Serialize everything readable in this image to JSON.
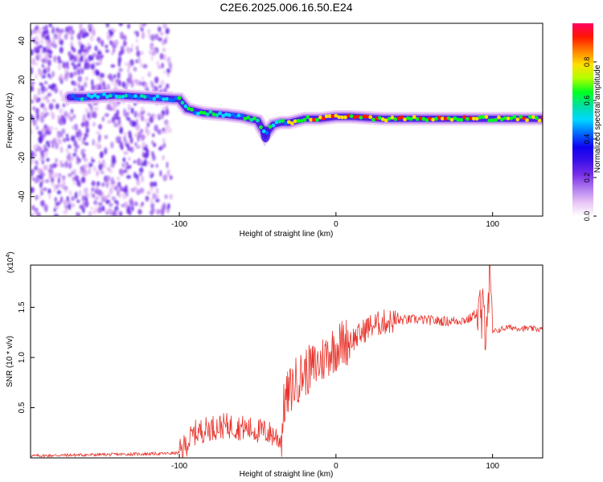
{
  "figure": {
    "title": "C2E6.2025.006.16.50.E24"
  },
  "colorbar": {
    "label": "Normalized spectral amplitude",
    "ticks": [
      "0.0",
      "0.2",
      "0.4",
      "0.6",
      "0.8"
    ],
    "colormap": [
      "#ffffff",
      "#e8c4f5",
      "#b07cf0",
      "#7a2fe8",
      "#3b10e8",
      "#1000f0",
      "#0068ff",
      "#00d8ff",
      "#00e0a0",
      "#00ff20",
      "#b0ff00",
      "#ffe000",
      "#ff8000",
      "#ff1800",
      "#ff0060"
    ]
  },
  "chart_data": [
    {
      "type": "heatmap",
      "xlabel": "Height of straight line (km)",
      "ylabel": "Frequency (Hz)",
      "xlim": [
        -195,
        132
      ],
      "ylim": [
        -50,
        49
      ],
      "xticks": [
        -100,
        0,
        100
      ],
      "yticks": [
        40,
        20,
        0,
        -20,
        -40
      ],
      "ridge": {
        "x": [
          -160,
          -140,
          -120,
          -100,
          -95,
          -85,
          -70,
          -60,
          -50,
          -45,
          -40,
          -35,
          -30,
          -20,
          -10,
          0,
          10,
          30,
          60,
          90,
          100,
          130
        ],
        "frequency": [
          11,
          12,
          11,
          10,
          5,
          3,
          2,
          1,
          -1,
          -8,
          -3,
          -2,
          -2,
          0,
          0,
          1,
          1,
          0,
          0,
          0,
          0,
          0
        ]
      }
    },
    {
      "type": "line",
      "xlabel": "Height of straight line (km)",
      "ylabel": "SNR (10 * v/v)",
      "y_multiplier_label": "(x10",
      "y_multiplier_exponent": "4",
      "y_multiplier_close": ")",
      "xlim": [
        -195,
        132
      ],
      "ylim": [
        0,
        19200
      ],
      "xticks": [
        -100,
        0,
        100
      ],
      "yticks": [
        5000,
        10000,
        15000
      ],
      "ytick_labels": [
        "0.5",
        "1.0",
        "1.5"
      ],
      "color": "#e8332b",
      "series": [
        {
          "x": [
            -195,
            -180,
            -160,
            -140,
            -120,
            -105,
            -100,
            -95,
            -90,
            -80,
            -70,
            -60,
            -50,
            -45,
            -40,
            -35,
            -33,
            -30,
            -25,
            -20,
            -15,
            -10,
            -5,
            0,
            5,
            10,
            15,
            20,
            30,
            40,
            50,
            60,
            70,
            80,
            85,
            90,
            95,
            98,
            100,
            105,
            110,
            120,
            132
          ],
          "y": [
            200,
            250,
            300,
            350,
            400,
            450,
            500,
            1500,
            2500,
            3000,
            3200,
            3000,
            2700,
            2600,
            2300,
            1800,
            5500,
            6500,
            7800,
            8500,
            9000,
            9500,
            10500,
            11000,
            11500,
            11800,
            12200,
            13000,
            13500,
            13700,
            13800,
            13700,
            13600,
            13700,
            13800,
            14500,
            13500,
            17000,
            12500,
            12800,
            13000,
            12900,
            12800
          ]
        }
      ]
    }
  ]
}
